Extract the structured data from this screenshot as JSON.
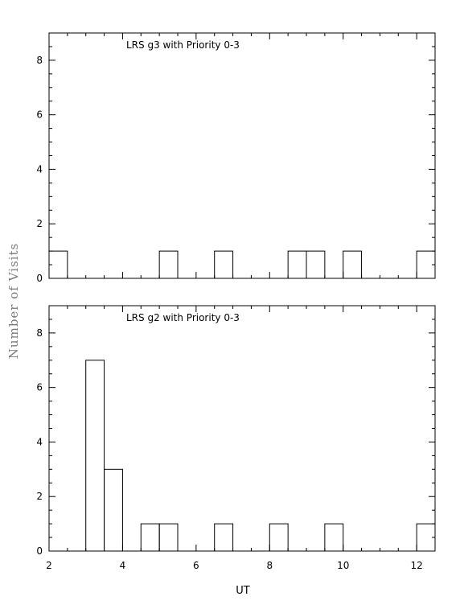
{
  "chart_data": [
    {
      "type": "bar",
      "title": "LRS g3 with Priority 0-3",
      "xlabel": "",
      "ylabel": "Number of Visits",
      "xlim": [
        2,
        12.5
      ],
      "ylim": [
        0,
        9
      ],
      "yticks": [
        0,
        2,
        4,
        6,
        8
      ],
      "bin_width": 0.5,
      "bin_starts": [
        2.0,
        2.5,
        3.0,
        3.5,
        4.0,
        4.5,
        5.0,
        5.5,
        6.0,
        6.5,
        7.0,
        7.5,
        8.0,
        8.5,
        9.0,
        9.5,
        10.0,
        10.5,
        11.0,
        11.5,
        12.0
      ],
      "values": [
        1,
        0,
        0,
        0,
        0,
        0,
        1,
        0,
        0,
        1,
        0,
        0,
        0,
        1,
        1,
        0,
        1,
        0,
        0,
        0,
        1
      ]
    },
    {
      "type": "bar",
      "title": "LRS g2 with Priority 0-3",
      "xlabel": "UT",
      "ylabel": "Number of Visits",
      "xlim": [
        2,
        12.5
      ],
      "ylim": [
        0,
        9
      ],
      "xticks": [
        2,
        4,
        6,
        8,
        10,
        12
      ],
      "yticks": [
        0,
        2,
        4,
        6,
        8
      ],
      "bin_width": 0.5,
      "bin_starts": [
        2.0,
        2.5,
        3.0,
        3.5,
        4.0,
        4.5,
        5.0,
        5.5,
        6.0,
        6.5,
        7.0,
        7.5,
        8.0,
        8.5,
        9.0,
        9.5,
        10.0,
        10.5,
        11.0,
        11.5,
        12.0
      ],
      "values": [
        0,
        0,
        7,
        3,
        0,
        1,
        1,
        0,
        0,
        1,
        0,
        0,
        1,
        0,
        0,
        1,
        0,
        0,
        0,
        0,
        1
      ]
    }
  ],
  "labels": {
    "ylabel": "Number of Visits",
    "xlabel": "UT",
    "top_title": "LRS g3 with Priority 0-3",
    "bottom_title": "LRS g2 with Priority 0-3"
  }
}
